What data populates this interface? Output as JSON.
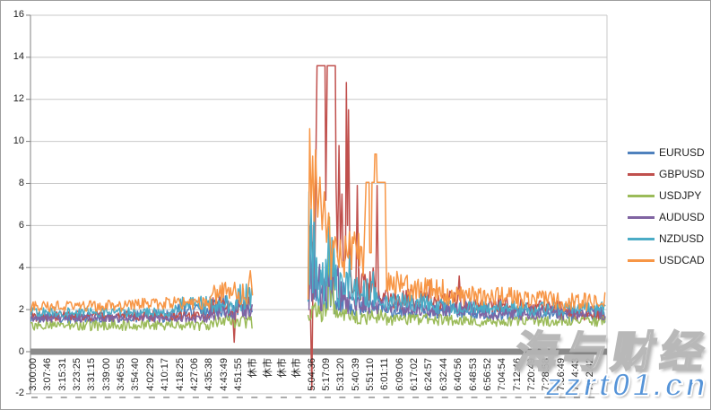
{
  "chart_data": {
    "type": "line",
    "title": "",
    "legend_position": "right",
    "grid": true,
    "y_axis": {
      "min": -2,
      "max": 16,
      "step": 2
    },
    "x_labels": [
      "3:00:00",
      "3:07:46",
      "3:15:31",
      "3:23:25",
      "3:31:15",
      "3:39:00",
      "3:46:55",
      "3:54:40",
      "4:02:29",
      "4:10:17",
      "4:18:25",
      "4:27:06",
      "4:35:38",
      "4:43:49",
      "4:51:55",
      "休市",
      "休市",
      "休市",
      "休市",
      "5:04:36",
      "5:17:09",
      "5:31:20",
      "5:40:39",
      "5:51:10",
      "6:01:11",
      "6:09:06",
      "6:17:02",
      "6:24:57",
      "6:32:44",
      "6:40:56",
      "6:48:53",
      "6:56:52",
      "7:04:54",
      "7:12:46",
      "7:20:49",
      "7:28:58",
      "7:36:49",
      "7:44:43",
      "7:52:42"
    ],
    "market_closed_label": "休市",
    "series": [
      {
        "name": "EURUSD",
        "color": "#4F81BD",
        "runs": [
          [
            {
              "band": [
                -0.2,
                6,
                1.35,
                1.85
              ]
            },
            {
              "band": [
                6,
                9.5,
                1.4,
                2.0
              ]
            },
            {
              "band": [
                9.5,
                12,
                1.5,
                2.3
              ]
            },
            {
              "band": [
                12,
                14.9,
                1.6,
                2.7
              ]
            }
          ],
          [
            {
              "pts": [
                [
                  18.75,
                  2.2
                ],
                [
                  18.8,
                  6.0
                ],
                [
                  18.9,
                  3.0
                ],
                [
                  19.0,
                  5.2
                ],
                [
                  19.1,
                  2.5
                ]
              ]
            },
            {
              "band": [
                19.1,
                20.5,
                2.0,
                4.3
              ]
            },
            {
              "band": [
                20.5,
                21.5,
                1.8,
                3.4
              ]
            },
            {
              "band": [
                21.5,
                24,
                1.7,
                2.7
              ]
            },
            {
              "band": [
                24,
                30,
                1.6,
                2.3
              ]
            },
            {
              "band": [
                30,
                36,
                1.5,
                2.1
              ]
            },
            {
              "band": [
                36,
                39,
                1.4,
                2.0
              ]
            }
          ]
        ]
      },
      {
        "name": "GBPUSD",
        "color": "#C0504D",
        "runs": [
          [
            {
              "band": [
                -0.2,
                12,
                1.45,
                1.95
              ]
            },
            {
              "band": [
                12,
                13.5,
                1.7,
                2.6
              ]
            },
            {
              "pts": [
                [
                  13.55,
                  1.9
                ],
                [
                  13.65,
                  0.45
                ],
                [
                  13.75,
                  1.8
                ]
              ]
            },
            {
              "band": [
                13.75,
                14.9,
                1.8,
                2.6
              ]
            }
          ],
          [
            {
              "pts": [
                [
                  18.85,
                  2.0
                ],
                [
                  18.95,
                  -1.8
                ],
                [
                  19.0,
                  2.0
                ],
                [
                  19.05,
                  6.0
                ],
                [
                  19.15,
                  3.5
                ],
                [
                  19.25,
                  10.5
                ],
                [
                  19.3,
                  13.6
                ],
                [
                  19.85,
                  13.6
                ],
                [
                  19.9,
                  7.2
                ],
                [
                  20.0,
                  13.6
                ],
                [
                  20.55,
                  13.6
                ],
                [
                  20.6,
                  8.0
                ],
                [
                  20.7,
                  4.5
                ],
                [
                  20.8,
                  9.8
                ],
                [
                  20.9,
                  5.0
                ],
                [
                  21.0,
                  7.5
                ],
                [
                  21.1,
                  4.0
                ],
                [
                  21.25,
                  4.5
                ],
                [
                  21.3,
                  12.8
                ],
                [
                  21.38,
                  6.0
                ],
                [
                  21.45,
                  11.5
                ],
                [
                  21.55,
                  4.2
                ],
                [
                  21.7,
                  2.8
                ],
                [
                  21.95,
                  3.0
                ],
                [
                  22.05,
                  7.9
                ],
                [
                  22.15,
                  2.8
                ]
              ]
            },
            {
              "band": [
                22.15,
                23.2,
                2.2,
                4.0
              ]
            },
            {
              "pts": [
                [
                  23.3,
                  2.6
                ],
                [
                  23.4,
                  7.9
                ],
                [
                  23.5,
                  2.5
                ]
              ]
            },
            {
              "band": [
                23.5,
                26.8,
                2.0,
                3.0
              ]
            },
            {
              "pts": [
                [
                  26.9,
                  2.4
                ],
                [
                  27.0,
                  3.4
                ],
                [
                  27.1,
                  2.3
                ]
              ]
            },
            {
              "band": [
                27.1,
                28.8,
                2.0,
                2.9
              ]
            },
            {
              "pts": [
                [
                  28.9,
                  2.5
                ],
                [
                  29.0,
                  3.6
                ],
                [
                  29.1,
                  2.4
                ]
              ]
            },
            {
              "band": [
                29.1,
                33,
                1.9,
                2.7
              ]
            },
            {
              "band": [
                33,
                36,
                1.8,
                2.5
              ]
            },
            {
              "band": [
                36,
                39,
                1.5,
                2.1
              ]
            }
          ]
        ]
      },
      {
        "name": "USDJPY",
        "color": "#9BBB59",
        "runs": [
          [
            {
              "band": [
                -0.2,
                12,
                1.0,
                1.5
              ]
            },
            {
              "band": [
                12,
                14.9,
                1.1,
                1.8
              ]
            }
          ],
          [
            {
              "band": [
                18.7,
                20.0,
                1.4,
                2.4
              ]
            },
            {
              "pts": [
                [
                  20.05,
                  2.0
                ],
                [
                  20.15,
                  6.4
                ],
                [
                  20.25,
                  2.2
                ],
                [
                  20.35,
                  5.3
                ],
                [
                  20.45,
                  1.8
                ]
              ]
            },
            {
              "band": [
                20.45,
                21.5,
                1.4,
                2.3
              ]
            },
            {
              "band": [
                21.5,
                24,
                1.3,
                2.0
              ]
            },
            {
              "band": [
                24,
                30,
                1.25,
                1.8
              ]
            },
            {
              "band": [
                30,
                39,
                1.2,
                1.7
              ]
            }
          ]
        ]
      },
      {
        "name": "AUDUSD",
        "color": "#8064A2",
        "runs": [
          [
            {
              "band": [
                -0.2,
                12,
                1.4,
                1.8
              ]
            },
            {
              "band": [
                12,
                14.9,
                1.5,
                2.3
              ]
            }
          ],
          [
            {
              "pts": [
                [
                  18.75,
                  2.0
                ],
                [
                  18.85,
                  4.6
                ],
                [
                  18.95,
                  2.4
                ],
                [
                  19.1,
                  5.0
                ],
                [
                  19.2,
                  2.6
                ]
              ]
            },
            {
              "band": [
                19.2,
                21.0,
                1.9,
                4.3
              ]
            },
            {
              "band": [
                21.0,
                22.5,
                1.8,
                3.2
              ]
            },
            {
              "band": [
                22.5,
                24,
                1.8,
                2.7
              ]
            },
            {
              "band": [
                24,
                30,
                1.7,
                2.4
              ]
            },
            {
              "band": [
                30,
                39,
                1.5,
                2.2
              ]
            }
          ]
        ]
      },
      {
        "name": "NZDUSD",
        "color": "#4BACC6",
        "runs": [
          [
            {
              "band": [
                -0.2,
                9.5,
                1.65,
                2.1
              ]
            },
            {
              "band": [
                9.5,
                13.5,
                1.8,
                2.7
              ]
            },
            {
              "band": [
                13.5,
                14.9,
                1.9,
                3.3
              ]
            }
          ],
          [
            {
              "pts": [
                [
                  18.7,
                  2.4
                ],
                [
                  18.75,
                  7.6
                ],
                [
                  18.8,
                  3.2
                ],
                [
                  18.9,
                  6.8
                ],
                [
                  19.0,
                  2.8
                ],
                [
                  19.1,
                  7.0
                ],
                [
                  19.2,
                  3.0
                ]
              ]
            },
            {
              "band": [
                19.2,
                20.6,
                2.2,
                6.2
              ]
            },
            {
              "band": [
                20.6,
                21.6,
                2.0,
                4.6
              ]
            },
            {
              "band": [
                21.6,
                23.3,
                2.0,
                3.8
              ]
            },
            {
              "band": [
                23.3,
                27,
                1.9,
                2.9
              ]
            },
            {
              "band": [
                27,
                33,
                1.8,
                2.5
              ]
            },
            {
              "band": [
                33,
                39,
                1.7,
                2.4
              ]
            }
          ]
        ]
      },
      {
        "name": "USDCAD",
        "color": "#F79646",
        "runs": [
          [
            {
              "band": [
                -0.2,
                6,
                1.9,
                2.45
              ]
            },
            {
              "band": [
                6,
                12,
                2.0,
                2.6
              ]
            },
            {
              "band": [
                12,
                14.6,
                2.2,
                3.3
              ]
            },
            {
              "pts": [
                [
                  14.6,
                  3.0
                ],
                [
                  14.75,
                  3.85
                ],
                [
                  14.9,
                  2.7
                ]
              ]
            }
          ],
          [
            {
              "pts": [
                [
                  18.7,
                  2.5
                ],
                [
                  18.8,
                  10.6
                ],
                [
                  18.9,
                  6.8
                ],
                [
                  19.0,
                  9.3
                ],
                [
                  19.1,
                  6.2
                ],
                [
                  19.2,
                  9.6
                ],
                [
                  19.35,
                  6.4
                ],
                [
                  19.5,
                  8.3
                ],
                [
                  19.65,
                  5.8
                ],
                [
                  19.8,
                  7.6
                ],
                [
                  19.95,
                  5.2
                ],
                [
                  20.1,
                  6.6
                ],
                [
                  20.25,
                  4.4
                ]
              ]
            },
            {
              "band": [
                20.25,
                22.4,
                3.3,
                5.8
              ]
            },
            {
              "pts": [
                [
                  22.45,
                  3.6
                ],
                [
                  22.65,
                  8.05
                ],
                [
                  22.85,
                  8.05
                ],
                [
                  22.9,
                  4.7
                ],
                [
                  23.0,
                  4.7
                ],
                [
                  23.05,
                  8.05
                ],
                [
                  23.2,
                  8.05
                ],
                [
                  23.25,
                  9.4
                ],
                [
                  23.35,
                  9.4
                ],
                [
                  23.4,
                  8.05
                ],
                [
                  23.95,
                  8.05
                ],
                [
                  24.05,
                  2.9
                ]
              ]
            },
            {
              "band": [
                24.05,
                25.5,
                2.7,
                3.9
              ]
            },
            {
              "band": [
                25.5,
                28,
                2.4,
                3.5
              ]
            },
            {
              "band": [
                28,
                33,
                2.2,
                3.1
              ]
            },
            {
              "band": [
                33,
                36,
                2.0,
                2.9
              ]
            },
            {
              "band": [
                36,
                39,
                1.9,
                2.8
              ]
            }
          ]
        ]
      }
    ]
  },
  "colors": {
    "gridline": "#c9c9c9",
    "axis": "#808080",
    "zero_bar": "#8b8b8b",
    "label_text": "#1f1f1f"
  },
  "watermark": {
    "title": "海与财经",
    "url": "zzrt01.cn",
    "title_color": "#ffffff",
    "url_color": "#4d8fd6"
  }
}
